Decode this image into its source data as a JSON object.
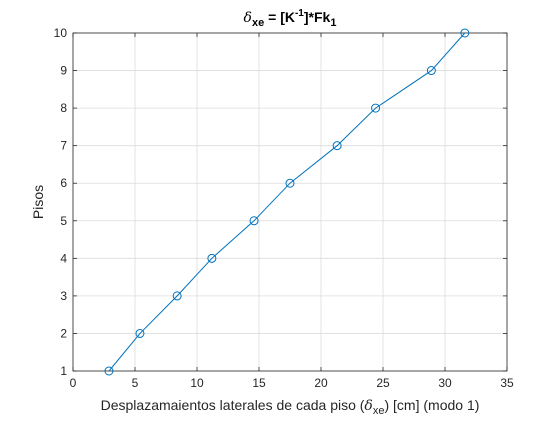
{
  "chart_data": {
    "type": "line",
    "title": {
      "symbol": "δ",
      "symbol_sub": "xe",
      "mid": " = [K",
      "sup": "-1",
      "after": "]*Fk",
      "end_sub": "1"
    },
    "xlabel": {
      "pre": "Desplazamaientos laterales de cada piso (",
      "symbol": "δ",
      "sub": "xe",
      "post": ") [cm] (modo 1)"
    },
    "ylabel": "Pisos",
    "xlim": [
      0,
      35
    ],
    "ylim": [
      1,
      10
    ],
    "xticks": [
      0,
      5,
      10,
      15,
      20,
      25,
      30,
      35
    ],
    "yticks": [
      1,
      2,
      3,
      4,
      5,
      6,
      7,
      8,
      9,
      10
    ],
    "grid": true,
    "marker": "circle",
    "series": [
      {
        "color": "#0072BD",
        "x": [
          2.9,
          5.4,
          8.4,
          11.2,
          14.6,
          17.5,
          21.3,
          24.4,
          28.9,
          31.6
        ],
        "y": [
          1,
          2,
          3,
          4,
          5,
          6,
          7,
          8,
          9,
          10
        ]
      }
    ]
  }
}
